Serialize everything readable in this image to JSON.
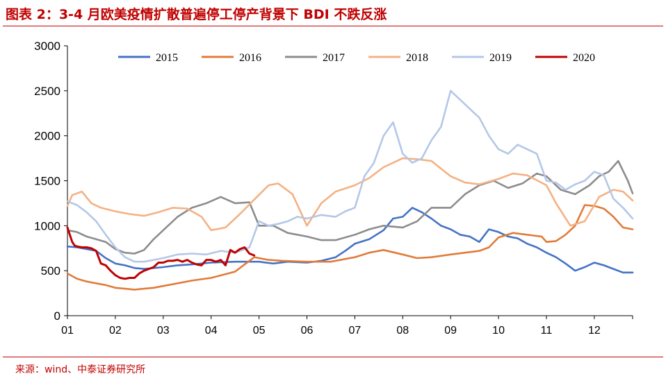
{
  "header": {
    "title": "图表 2：3-4 月欧美疫情扩散普遍停工停产背景下 BDI 不跌反涨"
  },
  "footer": {
    "source": "来源：wind、中泰证券研究所"
  },
  "chart_data": {
    "type": "line",
    "title": "图表 2：3-4 月欧美疫情扩散普遍停工停产背景下 BDI 不跌反涨",
    "xlabel": "",
    "ylabel": "",
    "ylim": [
      0,
      3000
    ],
    "yticks": [
      0,
      500,
      1000,
      1500,
      2000,
      2500,
      3000
    ],
    "xlim": [
      1,
      12.8
    ],
    "xticks": [
      "01",
      "02",
      "03",
      "04",
      "05",
      "06",
      "07",
      "08",
      "09",
      "10",
      "11",
      "12"
    ],
    "grid": false,
    "legend": "top",
    "series": [
      {
        "name": "2015",
        "color": "#4472c4",
        "x": [
          1,
          1.2,
          1.4,
          1.6,
          1.8,
          2,
          2.2,
          2.4,
          2.6,
          2.8,
          3,
          3.3,
          3.6,
          4,
          4.5,
          5,
          5.3,
          5.6,
          6,
          6.3,
          6.6,
          6.8,
          7,
          7.3,
          7.6,
          7.8,
          8,
          8.2,
          8.4,
          8.6,
          8.8,
          9,
          9.2,
          9.4,
          9.6,
          9.8,
          10,
          10.2,
          10.4,
          10.6,
          10.8,
          11,
          11.2,
          11.4,
          11.6,
          11.8,
          12,
          12.2,
          12.4,
          12.6,
          12.8
        ],
        "values": [
          770,
          760,
          740,
          720,
          640,
          580,
          560,
          530,
          520,
          530,
          540,
          560,
          570,
          590,
          600,
          600,
          580,
          600,
          590,
          610,
          650,
          720,
          800,
          850,
          950,
          1080,
          1100,
          1200,
          1150,
          1080,
          1000,
          960,
          900,
          880,
          820,
          960,
          930,
          880,
          860,
          800,
          760,
          700,
          650,
          580,
          500,
          540,
          590,
          560,
          520,
          480,
          480
        ]
      },
      {
        "name": "2016",
        "color": "#e07b39",
        "x": [
          1,
          1.2,
          1.4,
          1.6,
          1.8,
          2,
          2.2,
          2.4,
          2.6,
          2.8,
          3,
          3.3,
          3.6,
          4,
          4.5,
          4.9,
          5.2,
          5.5,
          6,
          6.5,
          7,
          7.3,
          7.6,
          8,
          8.3,
          8.6,
          9,
          9.3,
          9.6,
          9.8,
          10,
          10.3,
          10.6,
          10.9,
          11,
          11.2,
          11.4,
          11.6,
          11.8,
          12,
          12.2,
          12.4,
          12.6,
          12.8
        ],
        "values": [
          470,
          410,
          380,
          360,
          340,
          310,
          300,
          290,
          300,
          310,
          330,
          360,
          390,
          420,
          490,
          650,
          620,
          610,
          600,
          600,
          650,
          700,
          730,
          680,
          640,
          650,
          680,
          700,
          720,
          760,
          870,
          920,
          900,
          880,
          820,
          830,
          900,
          1000,
          1230,
          1220,
          1190,
          1100,
          980,
          960
        ]
      },
      {
        "name": "2017",
        "color": "#8c8c8c",
        "x": [
          1,
          1.2,
          1.4,
          1.6,
          1.8,
          2,
          2.2,
          2.4,
          2.6,
          2.8,
          3,
          3.3,
          3.6,
          3.9,
          4.2,
          4.5,
          4.8,
          5,
          5.3,
          5.6,
          6,
          6.3,
          6.6,
          7,
          7.3,
          7.6,
          8,
          8.3,
          8.6,
          9,
          9.3,
          9.6,
          9.9,
          10.2,
          10.5,
          10.8,
          11,
          11.3,
          11.6,
          11.9,
          12.1,
          12.3,
          12.5,
          12.7,
          12.8
        ],
        "values": [
          950,
          930,
          880,
          850,
          820,
          740,
          700,
          690,
          730,
          850,
          950,
          1100,
          1200,
          1250,
          1320,
          1250,
          1260,
          1000,
          1000,
          920,
          880,
          840,
          840,
          900,
          960,
          1000,
          980,
          1050,
          1200,
          1200,
          1350,
          1450,
          1500,
          1420,
          1470,
          1580,
          1550,
          1400,
          1350,
          1450,
          1550,
          1600,
          1720,
          1500,
          1360
        ]
      },
      {
        "name": "2018",
        "color": "#f4b183",
        "x": [
          1,
          1.1,
          1.3,
          1.5,
          1.7,
          2,
          2.3,
          2.6,
          2.9,
          3.2,
          3.5,
          3.8,
          4,
          4.3,
          4.6,
          4.9,
          5.2,
          5.4,
          5.7,
          6,
          6.3,
          6.6,
          7,
          7.3,
          7.6,
          8,
          8.3,
          8.6,
          9,
          9.3,
          9.6,
          10,
          10.3,
          10.6,
          11,
          11.2,
          11.5,
          11.8,
          12.1,
          12.4,
          12.6,
          12.8
        ],
        "values": [
          1220,
          1340,
          1380,
          1250,
          1200,
          1160,
          1130,
          1110,
          1150,
          1200,
          1190,
          1100,
          950,
          980,
          1130,
          1290,
          1450,
          1470,
          1350,
          1000,
          1250,
          1380,
          1450,
          1530,
          1650,
          1750,
          1740,
          1720,
          1550,
          1480,
          1460,
          1520,
          1580,
          1560,
          1450,
          1250,
          1000,
          1050,
          1320,
          1400,
          1380,
          1280
        ]
      },
      {
        "name": "2019",
        "color": "#b4c7e7",
        "x": [
          1,
          1.2,
          1.4,
          1.6,
          1.8,
          2,
          2.2,
          2.4,
          2.6,
          2.8,
          3,
          3.3,
          3.6,
          3.9,
          4.2,
          4.5,
          4.8,
          5,
          5.2,
          5.4,
          5.6,
          5.8,
          6,
          6.3,
          6.6,
          6.8,
          7,
          7.2,
          7.4,
          7.6,
          7.8,
          8,
          8.2,
          8.4,
          8.6,
          8.8,
          9,
          9.2,
          9.4,
          9.6,
          9.8,
          10,
          10.2,
          10.4,
          10.6,
          10.8,
          11,
          11.2,
          11.4,
          11.6,
          11.8,
          12,
          12.2,
          12.4,
          12.6,
          12.8
        ],
        "values": [
          1270,
          1230,
          1150,
          1050,
          900,
          760,
          650,
          600,
          600,
          620,
          640,
          680,
          690,
          680,
          720,
          700,
          760,
          1050,
          1000,
          1020,
          1050,
          1100,
          1080,
          1120,
          1100,
          1160,
          1200,
          1550,
          1700,
          2000,
          2150,
          1800,
          1700,
          1750,
          1950,
          2100,
          2500,
          2400,
          2300,
          2200,
          2000,
          1850,
          1800,
          1900,
          1850,
          1800,
          1500,
          1480,
          1400,
          1460,
          1500,
          1600,
          1560,
          1300,
          1200,
          1080
        ]
      },
      {
        "name": "2020",
        "color": "#c00000",
        "x": [
          1,
          1.05,
          1.1,
          1.15,
          1.2,
          1.3,
          1.4,
          1.5,
          1.6,
          1.7,
          1.8,
          1.9,
          2,
          2.1,
          2.2,
          2.3,
          2.4,
          2.5,
          2.6,
          2.7,
          2.8,
          2.9,
          3,
          3.1,
          3.2,
          3.3,
          3.4,
          3.5,
          3.6,
          3.7,
          3.8,
          3.9,
          4,
          4.1,
          4.2,
          4.3,
          4.4,
          4.5,
          4.6,
          4.7,
          4.8,
          4.9
        ],
        "values": [
          980,
          900,
          820,
          780,
          770,
          760,
          760,
          750,
          720,
          580,
          560,
          500,
          450,
          420,
          410,
          420,
          420,
          470,
          500,
          520,
          540,
          590,
          590,
          610,
          610,
          620,
          600,
          620,
          590,
          570,
          560,
          620,
          620,
          600,
          620,
          560,
          730,
          700,
          740,
          760,
          690,
          670
        ]
      }
    ]
  }
}
